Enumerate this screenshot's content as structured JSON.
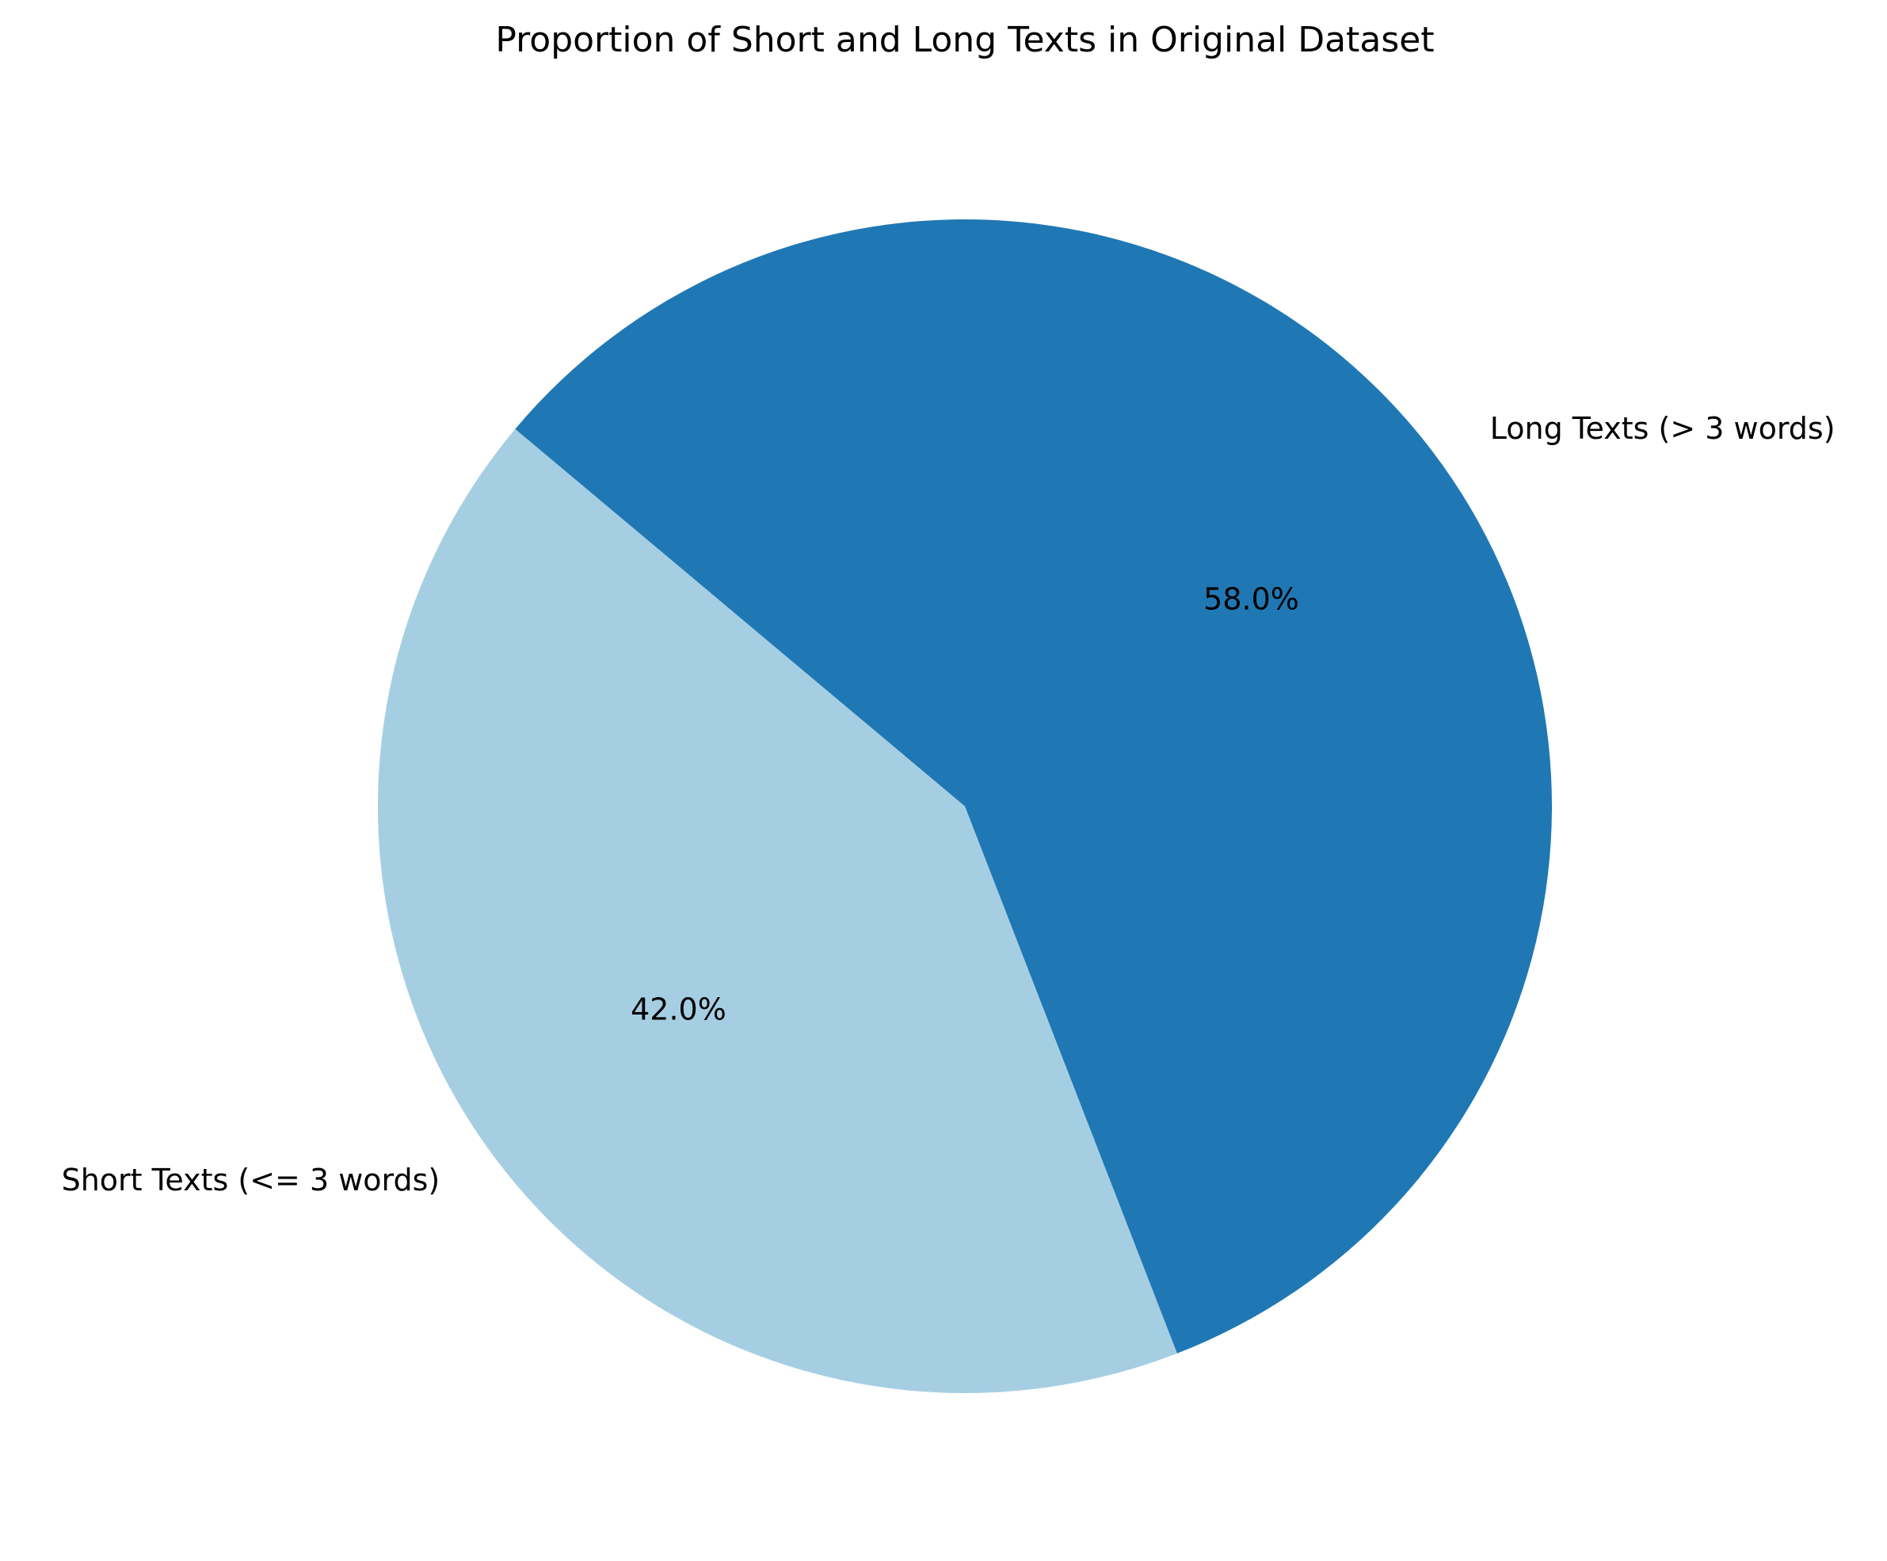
{
  "chart_data": {
    "type": "pie",
    "title": "Proportion of Short and Long Texts in Original Dataset",
    "slices": [
      {
        "label": "Short Texts (<= 3 words)",
        "value": 42.0,
        "pct_label": "42.0%",
        "color": "#a6cee3"
      },
      {
        "label": "Long Texts (> 3 words)",
        "value": 58.0,
        "pct_label": "58.0%",
        "color": "#1f78b4"
      }
    ],
    "start_angle_deg": 140,
    "direction": "counterclockwise"
  }
}
